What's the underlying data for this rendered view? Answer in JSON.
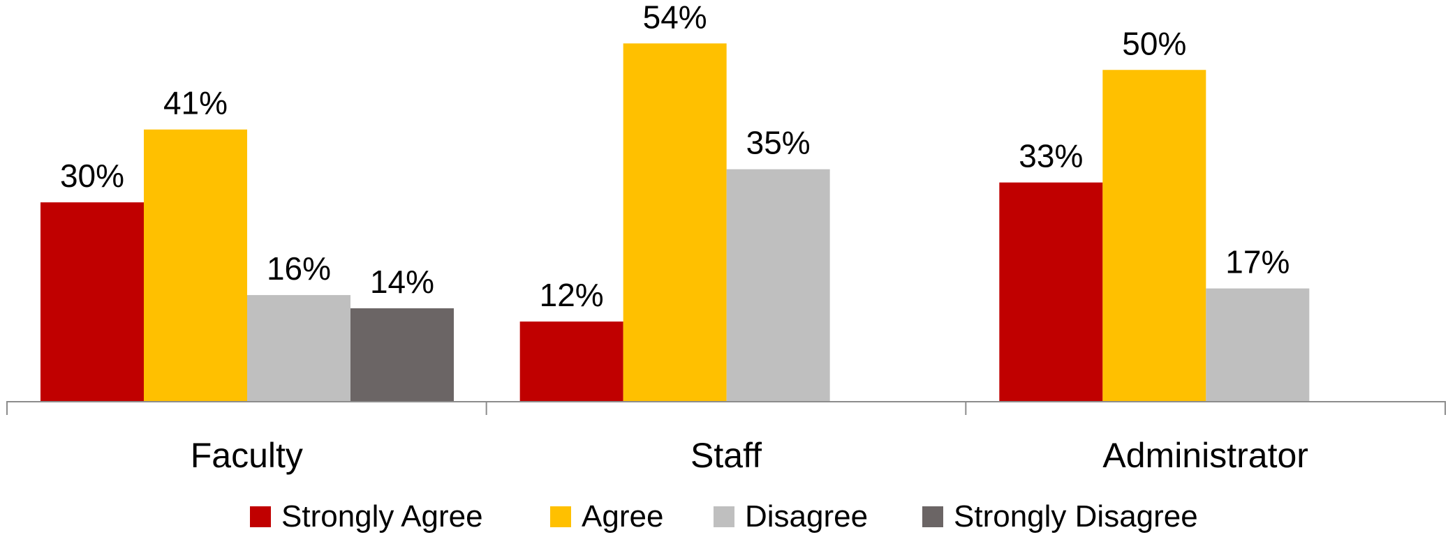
{
  "chart_data": {
    "type": "bar",
    "title": "",
    "xlabel": "",
    "ylabel": "",
    "ylim": [
      0,
      60
    ],
    "grid": false,
    "legend_position": "bottom",
    "categories": [
      "Faculty",
      "Staff",
      "Administrator"
    ],
    "series": [
      {
        "name": "Strongly Agree",
        "color": "#C00000",
        "values": [
          30,
          12,
          33
        ],
        "labels": [
          "30%",
          "12%",
          "33%"
        ]
      },
      {
        "name": "Agree",
        "color": "#FFC000",
        "values": [
          41,
          54,
          50
        ],
        "labels": [
          "41%",
          "54%",
          "50%"
        ]
      },
      {
        "name": "Disagree",
        "color": "#BFBFBF",
        "values": [
          16,
          35,
          17
        ],
        "labels": [
          "16%",
          "35%",
          "17%"
        ]
      },
      {
        "name": "Strongly Disagree",
        "color": "#6B6565",
        "values": [
          14,
          null,
          null
        ],
        "labels": [
          "14%",
          "",
          ""
        ]
      }
    ]
  }
}
